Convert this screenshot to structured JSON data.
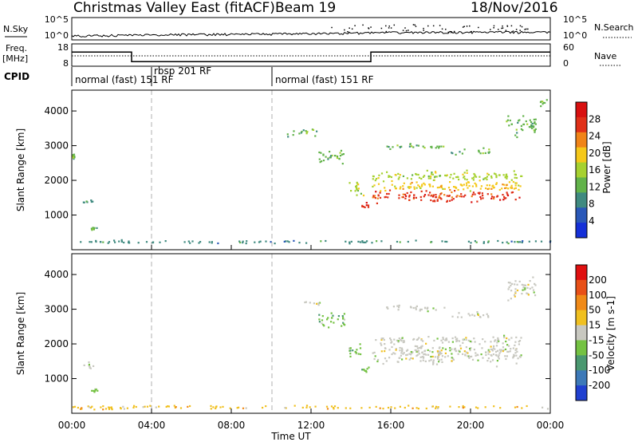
{
  "header": {
    "station": "Christmas Valley East (fitACF)",
    "beam": "Beam 19",
    "date": "18/Nov/2016"
  },
  "nsky_panel": {
    "left_label": "N.Sky",
    "right_label": "N.Search",
    "left_ticks": [
      "10^5",
      "10^0"
    ],
    "right_ticks": [
      "10^5",
      "10^0"
    ]
  },
  "freq_panel": {
    "left_label_1": "Freq.",
    "left_label_2": "[MHz]",
    "right_label": "Nave",
    "left_ticks": [
      "18",
      "8"
    ],
    "right_ticks": [
      "60",
      "0"
    ]
  },
  "cpid": {
    "label": "CPID",
    "segments": [
      "normal (fast) 151 RF",
      "rbsp 201 RF",
      "normal (fast) 151 RF"
    ]
  },
  "power_panel": {
    "ylabel": "Slant Range [km]",
    "yticks": [
      "1000",
      "2000",
      "3000",
      "4000"
    ],
    "colorbar_label": "Power [dB]",
    "colorbar_ticks": [
      "4",
      "8",
      "12",
      "16",
      "20",
      "24",
      "28"
    ]
  },
  "velocity_panel": {
    "ylabel": "Slant Range [km]",
    "yticks": [
      "1000",
      "2000",
      "3000",
      "4000"
    ],
    "colorbar_label": "Velocity [m s-1]",
    "colorbar_ticks": [
      "200",
      "100",
      "50",
      "15",
      "-15",
      "-50",
      "-100",
      "-200"
    ]
  },
  "xaxis": {
    "label": "Time UT",
    "ticks": [
      "00:00",
      "04:00",
      "08:00",
      "12:00",
      "16:00",
      "20:00",
      "00:00"
    ]
  },
  "colors": {
    "power_scale": [
      "#1530d8",
      "#2a58b8",
      "#3f8a80",
      "#62b34a",
      "#a6d130",
      "#f5c81a",
      "#f08418",
      "#e03018",
      "#d81010"
    ],
    "velocity_scale": [
      "#2040d0",
      "#3d79b8",
      "#4a9870",
      "#74c242",
      "#c8c8c0",
      "#f0c020",
      "#f08a18",
      "#e85018",
      "#e01010"
    ],
    "ground_scatter": "#bfbfbf"
  },
  "chart_data": [
    {
      "type": "line",
      "title": "N.Sky / N.Search",
      "x": [
        "00:00",
        "04:00",
        "08:00",
        "12:00",
        "16:00",
        "20:00",
        "00:00"
      ],
      "series": [
        {
          "name": "N.Sky",
          "values": [
            1,
            2,
            3,
            4,
            8,
            10,
            10
          ]
        }
      ],
      "ylim_left": [
        1,
        100000
      ],
      "ylim_right": [
        1,
        100000
      ]
    },
    {
      "type": "line",
      "title": "Freq. [MHz] / Nave",
      "x": [
        "00:00",
        "03:00",
        "03:00",
        "15:00",
        "15:00",
        "24:00"
      ],
      "series": [
        {
          "name": "Freq.",
          "values": [
            15,
            15,
            10,
            10,
            15,
            15
          ]
        }
      ],
      "ylim_left": [
        8,
        18
      ],
      "ylim_right": [
        0,
        60
      ]
    },
    {
      "type": "heatmap",
      "title": "Power [dB]",
      "xlabel": "Time UT",
      "ylabel": "Slant Range [km]",
      "xlim": [
        0,
        24
      ],
      "ylim": [
        0,
        4600
      ],
      "blobs": [
        {
          "t": 0.8,
          "r": 1400,
          "dt": 0.5,
          "dr": 150,
          "level": 2
        },
        {
          "t": 1.1,
          "r": 630,
          "dt": 0.3,
          "dr": 60,
          "level": 3
        },
        {
          "t": 0.05,
          "r": 2700,
          "dt": 0.1,
          "dr": 250,
          "level": 3
        },
        {
          "t": 11.5,
          "r": 3400,
          "dt": 1.5,
          "dr": 150,
          "level": 3
        },
        {
          "t": 13.0,
          "r": 2700,
          "dt": 1.3,
          "dr": 300,
          "level": 3
        },
        {
          "t": 14.2,
          "r": 1800,
          "dt": 0.8,
          "dr": 300,
          "level": 4
        },
        {
          "t": 14.7,
          "r": 1300,
          "dt": 0.4,
          "dr": 150,
          "level": 7
        },
        {
          "t": 18.8,
          "r": 1550,
          "dt": 7.5,
          "dr": 220,
          "level": 7
        },
        {
          "t": 18.8,
          "r": 1850,
          "dt": 7.5,
          "dr": 200,
          "level": 5
        },
        {
          "t": 18.8,
          "r": 2150,
          "dt": 7.5,
          "dr": 200,
          "level": 4
        },
        {
          "t": 17.2,
          "r": 3000,
          "dt": 3.0,
          "dr": 120,
          "level": 3
        },
        {
          "t": 20.0,
          "r": 2850,
          "dt": 2.0,
          "dr": 120,
          "level": 3
        },
        {
          "t": 22.5,
          "r": 3600,
          "dt": 1.5,
          "dr": 400,
          "level": 3
        },
        {
          "t": 23.6,
          "r": 4300,
          "dt": 0.4,
          "dr": 200,
          "level": 3
        },
        {
          "t": 12.0,
          "r": 250,
          "dt": 24.0,
          "dr": 60,
          "level": 2
        }
      ]
    },
    {
      "type": "heatmap",
      "title": "Velocity [m s-1]",
      "xlabel": "Time UT",
      "ylabel": "Slant Range [km]",
      "xlim": [
        0,
        24
      ],
      "ylim": [
        0,
        4600
      ],
      "blobs": [
        {
          "t": 0.8,
          "r": 1400,
          "dt": 0.5,
          "dr": 150,
          "level": 4
        },
        {
          "t": 1.1,
          "r": 680,
          "dt": 0.3,
          "dr": 60,
          "level": 3
        },
        {
          "t": 12.0,
          "r": 3200,
          "dt": 0.8,
          "dr": 120,
          "level": 4
        },
        {
          "t": 13.0,
          "r": 2700,
          "dt": 1.3,
          "dr": 300,
          "level": 3
        },
        {
          "t": 14.2,
          "r": 1800,
          "dt": 0.8,
          "dr": 300,
          "level": 3
        },
        {
          "t": 14.7,
          "r": 1300,
          "dt": 0.4,
          "dr": 150,
          "level": 3
        },
        {
          "t": 18.8,
          "r": 1750,
          "dt": 7.5,
          "dr": 450,
          "level": 4
        },
        {
          "t": 18.8,
          "r": 2150,
          "dt": 7.5,
          "dr": 150,
          "level": 4
        },
        {
          "t": 17.2,
          "r": 3050,
          "dt": 3.0,
          "dr": 120,
          "level": 4
        },
        {
          "t": 20.0,
          "r": 2850,
          "dt": 2.0,
          "dr": 120,
          "level": 4
        },
        {
          "t": 22.5,
          "r": 3600,
          "dt": 1.5,
          "dr": 400,
          "level": 4
        },
        {
          "t": 1.5,
          "r": 150,
          "dt": 2.5,
          "dr": 60,
          "level": 5
        },
        {
          "t": 12.0,
          "r": 200,
          "dt": 24.0,
          "dr": 60,
          "level": 5
        }
      ]
    }
  ]
}
